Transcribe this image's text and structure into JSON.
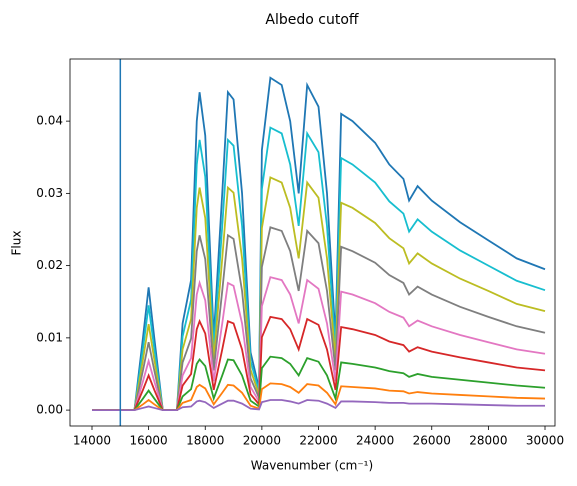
{
  "chart_data": {
    "type": "line",
    "title": "Albedo cutoff",
    "xlabel": "Wavenumber (cm⁻¹)",
    "ylabel": "Flux",
    "x": [
      14000,
      15000,
      15500,
      15800,
      16000,
      16200,
      16500,
      17000,
      17200,
      17500,
      17700,
      17800,
      18000,
      18300,
      18600,
      18800,
      19000,
      19300,
      19600,
      19900,
      20000,
      20300,
      20700,
      21000,
      21300,
      21600,
      22000,
      22300,
      22600,
      22800,
      23200,
      24000,
      24500,
      25000,
      25200,
      25500,
      26000,
      27000,
      28000,
      29000,
      30000
    ],
    "vline": {
      "x": 15000,
      "color": "#1f77b4"
    },
    "xlim": [
      13223,
      30353
    ],
    "ylim": [
      -0.0022,
      0.0486
    ],
    "xticks": [
      14000,
      16000,
      18000,
      20000,
      22000,
      24000,
      26000,
      28000,
      30000
    ],
    "yticks": [
      {
        "value": 0,
        "label": "0.00"
      },
      {
        "value": 0.01,
        "label": "0.01"
      },
      {
        "value": 0.02,
        "label": "0.02"
      },
      {
        "value": 0.03,
        "label": "0.03"
      },
      {
        "value": 0.04,
        "label": "0.04"
      }
    ],
    "series": [
      {
        "color": "#1f77b4",
        "values": [
          0,
          0,
          0,
          0.01,
          0.017,
          0.01,
          0,
          0,
          0.012,
          0.018,
          0.04,
          0.044,
          0.038,
          0.01,
          0.03,
          0.044,
          0.043,
          0.03,
          0.008,
          0.003,
          0.036,
          0.046,
          0.045,
          0.04,
          0.03,
          0.045,
          0.042,
          0.03,
          0.01,
          0.041,
          0.04,
          0.037,
          0.034,
          0.032,
          0.029,
          0.031,
          0.029,
          0.026,
          0.0235,
          0.021,
          0.0195
        ]
      },
      {
        "color": "#17becf",
        "values": [
          0,
          0,
          0,
          0.0085,
          0.0145,
          0.0085,
          0,
          0,
          0.0102,
          0.0153,
          0.034,
          0.0374,
          0.0323,
          0.0085,
          0.0255,
          0.0374,
          0.0366,
          0.0255,
          0.0068,
          0.0026,
          0.0306,
          0.0391,
          0.0383,
          0.034,
          0.0255,
          0.0383,
          0.0357,
          0.0255,
          0.0085,
          0.0349,
          0.034,
          0.0315,
          0.0289,
          0.0272,
          0.0247,
          0.0264,
          0.0247,
          0.0221,
          0.02,
          0.0179,
          0.0166
        ]
      },
      {
        "color": "#bcbd22",
        "values": [
          0,
          0,
          0,
          0.007,
          0.0119,
          0.007,
          0,
          0,
          0.0084,
          0.0126,
          0.028,
          0.0308,
          0.0266,
          0.007,
          0.021,
          0.0308,
          0.0301,
          0.021,
          0.0056,
          0.0021,
          0.0252,
          0.0322,
          0.0315,
          0.028,
          0.021,
          0.0315,
          0.0294,
          0.021,
          0.007,
          0.0287,
          0.028,
          0.0259,
          0.0238,
          0.0224,
          0.0203,
          0.0217,
          0.0203,
          0.0182,
          0.0165,
          0.0147,
          0.0137
        ]
      },
      {
        "color": "#7f7f7f",
        "values": [
          0,
          0,
          0,
          0.0055,
          0.0094,
          0.0055,
          0,
          0,
          0.0066,
          0.0099,
          0.022,
          0.0242,
          0.0209,
          0.0055,
          0.0165,
          0.0242,
          0.0237,
          0.0165,
          0.0044,
          0.0017,
          0.0198,
          0.0253,
          0.0248,
          0.022,
          0.0165,
          0.0248,
          0.0231,
          0.0165,
          0.0055,
          0.0226,
          0.022,
          0.0204,
          0.0187,
          0.0176,
          0.016,
          0.0171,
          0.016,
          0.0143,
          0.0129,
          0.0116,
          0.0107
        ]
      },
      {
        "color": "#e377c2",
        "values": [
          0,
          0,
          0,
          0.004,
          0.0068,
          0.004,
          0,
          0,
          0.0048,
          0.0072,
          0.016,
          0.0176,
          0.0152,
          0.004,
          0.012,
          0.0176,
          0.0172,
          0.012,
          0.0032,
          0.0012,
          0.0144,
          0.0184,
          0.018,
          0.016,
          0.012,
          0.018,
          0.0168,
          0.012,
          0.004,
          0.0164,
          0.016,
          0.0148,
          0.0136,
          0.0128,
          0.0116,
          0.0124,
          0.0116,
          0.0104,
          0.0094,
          0.0084,
          0.0078
        ]
      },
      {
        "color": "#d62728",
        "values": [
          0,
          0,
          0,
          0.0028,
          0.0048,
          0.0028,
          0,
          0,
          0.0034,
          0.005,
          0.0112,
          0.0123,
          0.0106,
          0.0028,
          0.0084,
          0.0123,
          0.012,
          0.0084,
          0.0022,
          0.0008,
          0.0101,
          0.0129,
          0.0126,
          0.0112,
          0.0084,
          0.0126,
          0.0118,
          0.0084,
          0.0028,
          0.0115,
          0.0112,
          0.0104,
          0.0095,
          0.009,
          0.0081,
          0.0087,
          0.0081,
          0.0073,
          0.0066,
          0.0059,
          0.0055
        ]
      },
      {
        "color": "#2ca02c",
        "values": [
          0,
          0,
          0,
          0.0016,
          0.0027,
          0.0016,
          0,
          0,
          0.0019,
          0.0029,
          0.0064,
          0.007,
          0.0061,
          0.0016,
          0.0048,
          0.007,
          0.0069,
          0.0048,
          0.0013,
          0.0005,
          0.0058,
          0.0074,
          0.0072,
          0.0064,
          0.0048,
          0.0072,
          0.0067,
          0.0048,
          0.0016,
          0.0066,
          0.0064,
          0.0059,
          0.0054,
          0.0051,
          0.0046,
          0.005,
          0.0046,
          0.0042,
          0.0038,
          0.0034,
          0.0031
        ]
      },
      {
        "color": "#ff7f0e",
        "values": [
          0,
          0,
          0,
          0.0008,
          0.0014,
          0.0008,
          0,
          0,
          0.001,
          0.0014,
          0.0032,
          0.0035,
          0.003,
          0.0008,
          0.0024,
          0.0035,
          0.0034,
          0.0024,
          0.0006,
          0.0002,
          0.0029,
          0.0037,
          0.0036,
          0.0032,
          0.0024,
          0.0036,
          0.0034,
          0.0024,
          0.0008,
          0.0033,
          0.0032,
          0.003,
          0.0027,
          0.0026,
          0.0023,
          0.0025,
          0.0023,
          0.0021,
          0.0019,
          0.0017,
          0.0016
        ]
      },
      {
        "color": "#9467bd",
        "values": [
          0,
          0,
          0,
          0.0003,
          0.0005,
          0.0003,
          0,
          0,
          0.0004,
          0.0005,
          0.0012,
          0.0013,
          0.0011,
          0.0003,
          0.0009,
          0.0013,
          0.0013,
          0.0009,
          0.0002,
          0.0001,
          0.0011,
          0.0014,
          0.0014,
          0.0012,
          0.0009,
          0.0014,
          0.0013,
          0.0009,
          0.0003,
          0.0012,
          0.0012,
          0.0011,
          0.001,
          0.001,
          0.0009,
          0.0009,
          0.0009,
          0.0008,
          0.0007,
          0.0006,
          0.0006
        ]
      }
    ]
  }
}
